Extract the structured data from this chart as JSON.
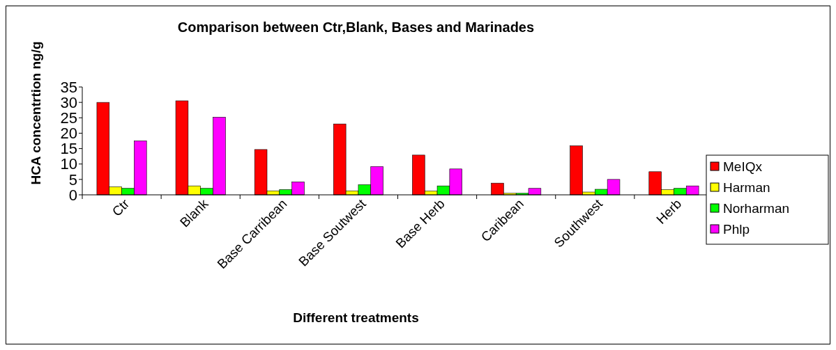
{
  "chart_data": {
    "type": "bar",
    "title": "Comparison between Ctr,Blank, Bases and Marinades",
    "xlabel": "Different treatments",
    "ylabel": "HCA concentrtion ng/g",
    "categories": [
      "Ctr",
      "Blank",
      "Base Carribean",
      "Base Soutwest",
      "Base Herb",
      "Caribean",
      "Southwest",
      "Herb"
    ],
    "series": [
      {
        "name": "MeIQx",
        "color": "#ff0000",
        "values": [
          30.0,
          30.5,
          14.7,
          23.0,
          12.9,
          3.8,
          15.9,
          7.5
        ]
      },
      {
        "name": "Harman",
        "color": "#ffff00",
        "values": [
          2.6,
          2.9,
          1.3,
          1.3,
          1.2,
          0.5,
          0.9,
          1.7
        ]
      },
      {
        "name": "Norharman",
        "color": "#00ff00",
        "values": [
          2.1,
          2.1,
          1.7,
          3.3,
          2.9,
          0.5,
          1.8,
          2.1
        ]
      },
      {
        "name": "Phlp",
        "color": "#ff00ff",
        "values": [
          17.5,
          25.2,
          4.2,
          9.2,
          8.4,
          2.1,
          5.0,
          2.9
        ]
      }
    ],
    "ylim": [
      0,
      35
    ],
    "yticks": [
      0,
      5,
      10,
      15,
      20,
      25,
      30,
      35
    ],
    "grid": false,
    "legend": "right"
  }
}
